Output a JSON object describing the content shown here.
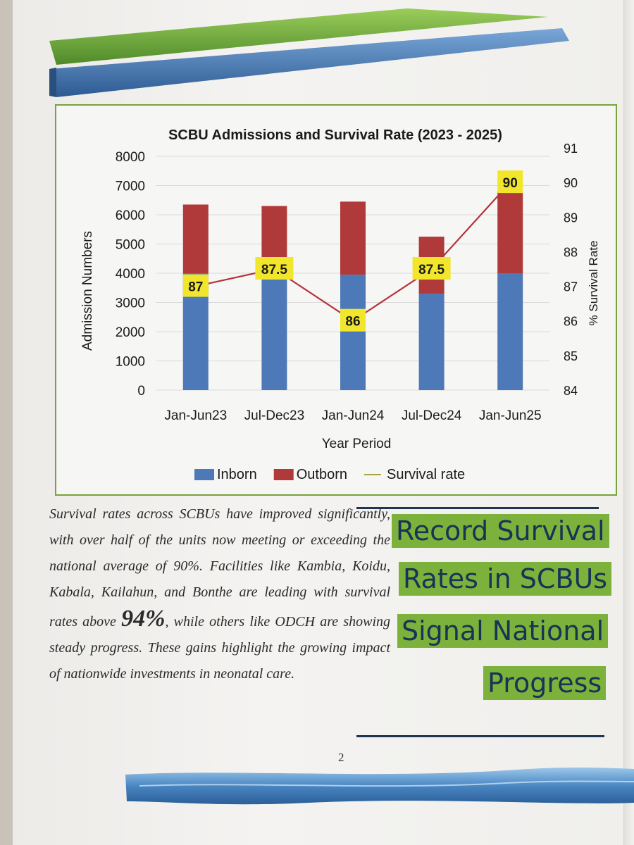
{
  "chart_data": {
    "type": "bar",
    "title": "SCBU Admissions and Survival Rate (2023 - 2025)",
    "xlabel": "Year Period",
    "ylabel": "Admission Numbers",
    "ylabel_right": "% Survival Rate",
    "ylim": [
      0,
      8000
    ],
    "ylim_right": [
      84,
      91
    ],
    "y_ticks": [
      0,
      1000,
      2000,
      3000,
      4000,
      5000,
      6000,
      7000,
      8000
    ],
    "y_ticks_right": [
      84,
      85,
      86,
      87,
      88,
      89,
      90,
      91
    ],
    "categories": [
      "Jan-Jun23",
      "Jul-Dec23",
      "Jan-Jun24",
      "Jul-Dec24",
      "Jan-Jun25"
    ],
    "series": [
      {
        "name": "Inborn",
        "type": "bar",
        "color": "#4e79b8",
        "values": [
          4000,
          3900,
          3950,
          3300,
          4000
        ]
      },
      {
        "name": "Outborn",
        "type": "bar",
        "color": "#b03a3a",
        "values": [
          2350,
          2400,
          2500,
          1950,
          2800
        ]
      },
      {
        "name": "Survival rate",
        "type": "line",
        "axis": "right",
        "color": "#b5323a",
        "values": [
          87,
          87.5,
          86,
          87.5,
          90
        ],
        "labels": [
          "87",
          "87.5",
          "86",
          "87.5",
          "90"
        ]
      }
    ],
    "legend": [
      "Inborn",
      "Outborn",
      "Survival rate"
    ],
    "legend_position": "bottom"
  },
  "article": {
    "text_1": "Survival rates across SCBUs have improved significantly, with over half of the units now meeting or exceeding the national average of 90%. Facilities like Kambia, Koidu, Kabala, Kailahun, and Bonthe are leading with survival rates above ",
    "highlight": "94%",
    "text_2": ", while others like ODCH are showing steady progress. These gains highlight the growing impact of nationwide investments in neonatal care.",
    "headline_1": "Record Survival",
    "headline_2": "Rates in SCBUs",
    "headline_3": "Signal National",
    "headline_4": "Progress",
    "page_number": "2"
  },
  "colors": {
    "green_band": "#6ea23a",
    "blue_band": "#3f6ea8",
    "headline_bg": "#7cb23b",
    "headline_text": "#173356"
  }
}
